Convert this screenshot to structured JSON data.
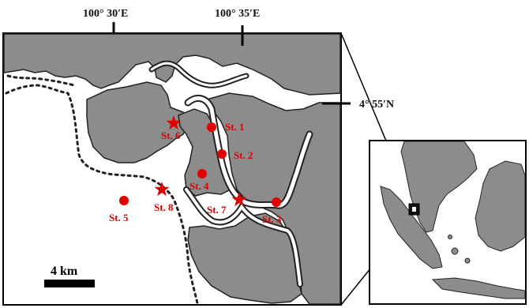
{
  "coordinates": {
    "lon_1": "100° 30′E",
    "lon_2": "100° 35′E",
    "lat_1": "4° 55′N"
  },
  "stations": [
    {
      "label": "St. 1",
      "marker": "circle"
    },
    {
      "label": "St. 2",
      "marker": "circle"
    },
    {
      "label": "St. 3",
      "marker": "circle"
    },
    {
      "label": "St. 4",
      "marker": "circle"
    },
    {
      "label": "St. 5",
      "marker": "circle"
    },
    {
      "label": "St. 6",
      "marker": "star"
    },
    {
      "label": "St. 7",
      "marker": "star"
    },
    {
      "label": "St. 8",
      "marker": "star"
    }
  ],
  "scale_bar": {
    "label": "4 km"
  },
  "colors": {
    "land": "#8c8c8c",
    "water": "#ffffff",
    "coastline": "#222222",
    "marker": "#e00000",
    "border": "#000000"
  },
  "inset": {
    "marker_icon": "location-box-icon"
  }
}
